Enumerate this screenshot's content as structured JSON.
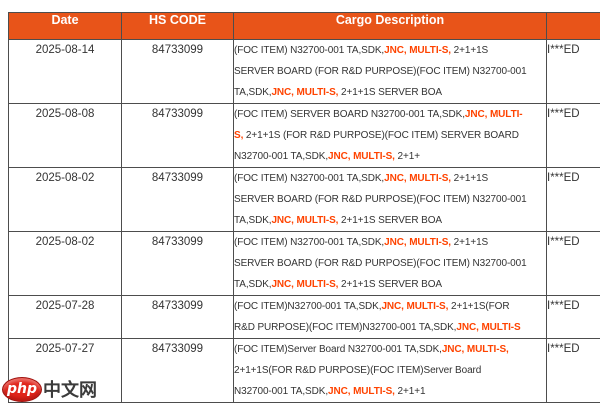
{
  "table": {
    "columns": [
      "Date",
      "HS CODE",
      "Cargo Description",
      ""
    ],
    "rows": [
      {
        "date": "2025-08-14",
        "hs_code": "84733099",
        "consignee": "I***ED",
        "lines": [
          [
            "(FOC ITEM) N32700-001 TA,SDK,",
            "JNC,",
            " ",
            "MULTI-S,",
            " 2+1+1S"
          ],
          [
            "SERVER BOARD (FOR R&D PURPOSE)(FOC ITEM) N32700-001"
          ],
          [
            "TA,SDK,",
            "JNC,",
            " ",
            "MULTI-S,",
            " 2+1+1S SERVER BOA"
          ]
        ]
      },
      {
        "date": "2025-08-08",
        "hs_code": "84733099",
        "consignee": "I***ED",
        "lines": [
          [
            "(FOC ITEM) SERVER BOARD N32700-001 TA,SDK,",
            "JNC,",
            " ",
            "MULTI-"
          ],
          [
            "",
            "S,",
            " 2+1+1S (FOR R&D PURPOSE)(FOC ITEM) SERVER BOARD"
          ],
          [
            "N32700-001 TA,SDK,",
            "JNC,",
            " ",
            "MULTI-S,",
            " 2+1+"
          ]
        ]
      },
      {
        "date": "2025-08-02",
        "hs_code": "84733099",
        "consignee": "I***ED",
        "lines": [
          [
            "(FOC ITEM) N32700-001 TA,SDK,",
            "JNC,",
            " ",
            "MULTI-S,",
            " 2+1+1S"
          ],
          [
            "SERVER BOARD (FOR R&D PURPOSE)(FOC ITEM) N32700-001"
          ],
          [
            "TA,SDK,",
            "JNC,",
            " ",
            "MULTI-S,",
            " 2+1+1S SERVER BOA"
          ]
        ]
      },
      {
        "date": "2025-08-02",
        "hs_code": "84733099",
        "consignee": "I***ED",
        "lines": [
          [
            "(FOC ITEM) N32700-001 TA,SDK,",
            "JNC,",
            " ",
            "MULTI-S,",
            " 2+1+1S"
          ],
          [
            "SERVER BOARD (FOR R&D PURPOSE)(FOC ITEM) N32700-001"
          ],
          [
            "TA,SDK,",
            "JNC,",
            " ",
            "MULTI-S,",
            " 2+1+1S SERVER BOA"
          ]
        ]
      },
      {
        "date": "2025-07-28",
        "hs_code": "84733099",
        "consignee": "I***ED",
        "lines": [
          [
            "(FOC ITEM)N32700-001 TA,SDK,",
            "JNC,",
            " ",
            "MULTI-S,",
            " 2+1+1S(FOR"
          ],
          [
            "R&D PURPOSE)(FOC ITEM)N32700-001 TA,SDK,",
            "JNC,",
            " ",
            "MULTI-S"
          ]
        ]
      },
      {
        "date": "2025-07-27",
        "hs_code": "84733099",
        "consignee": "I***ED",
        "lines": [
          [
            "(FOC ITEM)Server Board N32700-001 TA,SDK,",
            "JNC,",
            " ",
            "MULTI-S,"
          ],
          [
            "2+1+1S(FOR R&D PURPOSE)(FOC ITEM)Server Board"
          ],
          [
            "N32700-001 TA,SDK,",
            "JNC,",
            " ",
            "MULTI-S,",
            " 2+1+1"
          ]
        ]
      }
    ]
  },
  "watermark": {
    "badge": "php",
    "text": "中文网"
  },
  "colors": {
    "header_bg": "#E85419",
    "header_text": "#FFFFFF",
    "highlight": "#FF4300",
    "body_text": "#333333",
    "border": "#4D4D4D",
    "logo_red": "#E1251B"
  }
}
